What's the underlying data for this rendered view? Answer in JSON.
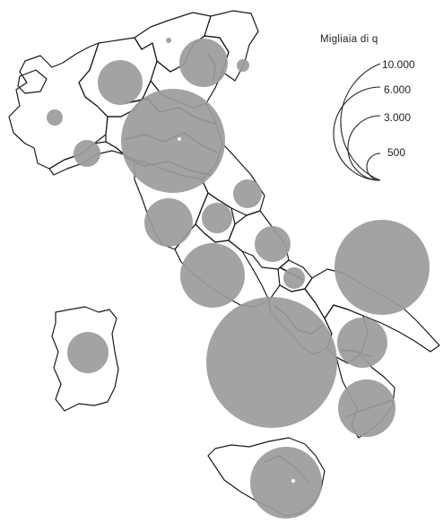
{
  "legend": {
    "title": "Migliaia di  q",
    "entries": [
      {
        "label": "10.000",
        "value": 10000
      },
      {
        "label": "6.000",
        "value": 6000
      },
      {
        "label": "3.000",
        "value": 3000
      },
      {
        "label": "500",
        "value": 500
      }
    ]
  },
  "colors": {
    "bubble": "#9b9b9b",
    "outline": "#1a1a1a",
    "background": "#ffffff"
  }
}
